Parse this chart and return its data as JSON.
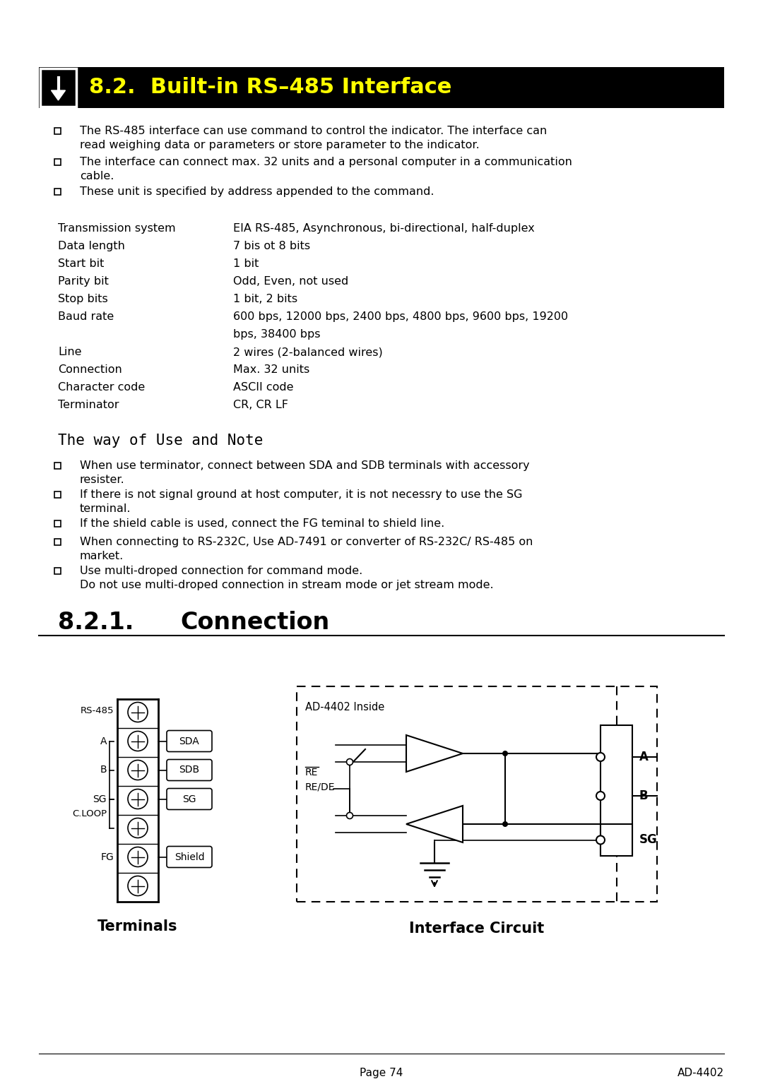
{
  "title": "8.2.  Built-in RS–485 Interface",
  "background_color": "#ffffff",
  "header_text_color": "#ffff00",
  "bullet_intro": [
    [
      "The RS-485 interface can use command to control the indicator. The interface can",
      "read weighing data or parameters or store parameter to the indicator."
    ],
    [
      "The interface can connect max. 32 units and a personal computer in a communication",
      "cable."
    ],
    [
      "These unit is specified by address appended to the command."
    ]
  ],
  "specs": [
    [
      "Transmission system",
      "EIA RS-485, Asynchronous, bi-directional, half-duplex"
    ],
    [
      "Data length",
      "7 bis ot 8 bits"
    ],
    [
      "Start bit",
      "1 bit"
    ],
    [
      "Parity bit",
      "Odd, Even, not used"
    ],
    [
      "Stop bits",
      "1 bit, 2 bits"
    ],
    [
      "Baud rate",
      "600 bps, 12000 bps, 2400 bps, 4800 bps, 9600 bps, 19200"
    ],
    [
      "",
      "bps, 38400 bps"
    ],
    [
      "Line",
      "2 wires (2-balanced wires)"
    ],
    [
      "Connection",
      "Max. 32 units"
    ],
    [
      "Character code",
      "ASCII code"
    ],
    [
      "Terminator",
      "CR, CR LF"
    ]
  ],
  "way_title": "The way of Use and Note",
  "way_items": [
    [
      "When use terminator, connect between SDA and SDB terminals with accessory",
      "resister."
    ],
    [
      "If there is not signal ground at host computer, it is not necessry to use the SG",
      "terminal."
    ],
    [
      "If the shield cable is used, connect the FG teminal to shield line."
    ],
    [
      "When connecting to RS-232C, Use AD-7491 or converter of RS-232C/ RS-485 on",
      "market."
    ],
    [
      "Use multi-droped connection for command mode.",
      "Do not use multi-droped connection in stream mode or jet stream mode."
    ]
  ],
  "section_title": "8.2.1.",
  "section_title2": "Connection",
  "terminals_title": "Terminals",
  "interface_title": "Interface Circuit",
  "ad4402_label": "AD-4402 Inside",
  "footer_left": "Page 74",
  "footer_right": "AD-4402",
  "ML": 55,
  "MR": 1025,
  "PW": 1080,
  "PH": 1528
}
